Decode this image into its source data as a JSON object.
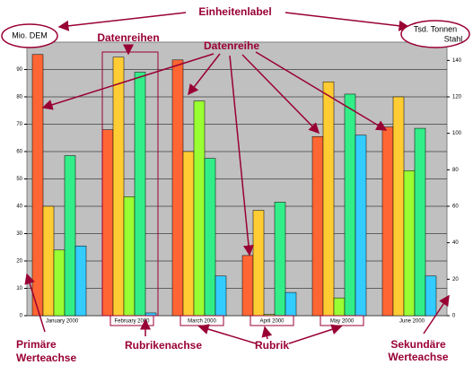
{
  "chart_data": {
    "type": "bar",
    "categories": [
      "January 2000",
      "February 2000",
      "March 2000",
      "April 2000",
      "May 2000",
      "June 2000"
    ],
    "series": [
      {
        "color": "#ff6633",
        "values": [
          95.5,
          68,
          93.5,
          22,
          65.5,
          69
        ]
      },
      {
        "color": "#ffcc33",
        "values": [
          40,
          94.5,
          60,
          38.5,
          85.5,
          80
        ]
      },
      {
        "color": "#99ff33",
        "values": [
          24,
          43.5,
          78.5,
          0.5,
          6.5,
          53
        ]
      },
      {
        "color": "#33ee88",
        "values": [
          58.5,
          89,
          57.5,
          41.5,
          81,
          68.5
        ]
      },
      {
        "color": "#33ccff",
        "values": [
          25.5,
          1,
          14.5,
          8.5,
          66,
          14.5
        ]
      }
    ],
    "ylim": [
      0,
      100
    ],
    "yticks": [
      0,
      10,
      20,
      30,
      40,
      50,
      60,
      70,
      80,
      90
    ],
    "y2lim": [
      0,
      150
    ],
    "y2ticks": [
      0,
      20,
      40,
      60,
      80,
      100,
      120,
      140
    ],
    "grid": true,
    "background": "#c0c0c0"
  },
  "annotations": {
    "unit_label": "Einheitenlabel",
    "left_unit": "Mio. DEM",
    "right_unit_1": "Tsd. Tonnen",
    "right_unit_2": "Stahl",
    "series_group": "Datenreihen",
    "series_single": "Datenreihe",
    "primary_axis_1": "Primäre",
    "primary_axis_2": "Werteachse",
    "category_axis": "Rubrikenachse",
    "category": "Rubrik",
    "secondary_axis_1": "Sekundäre",
    "secondary_axis_2": "Werteachse"
  }
}
